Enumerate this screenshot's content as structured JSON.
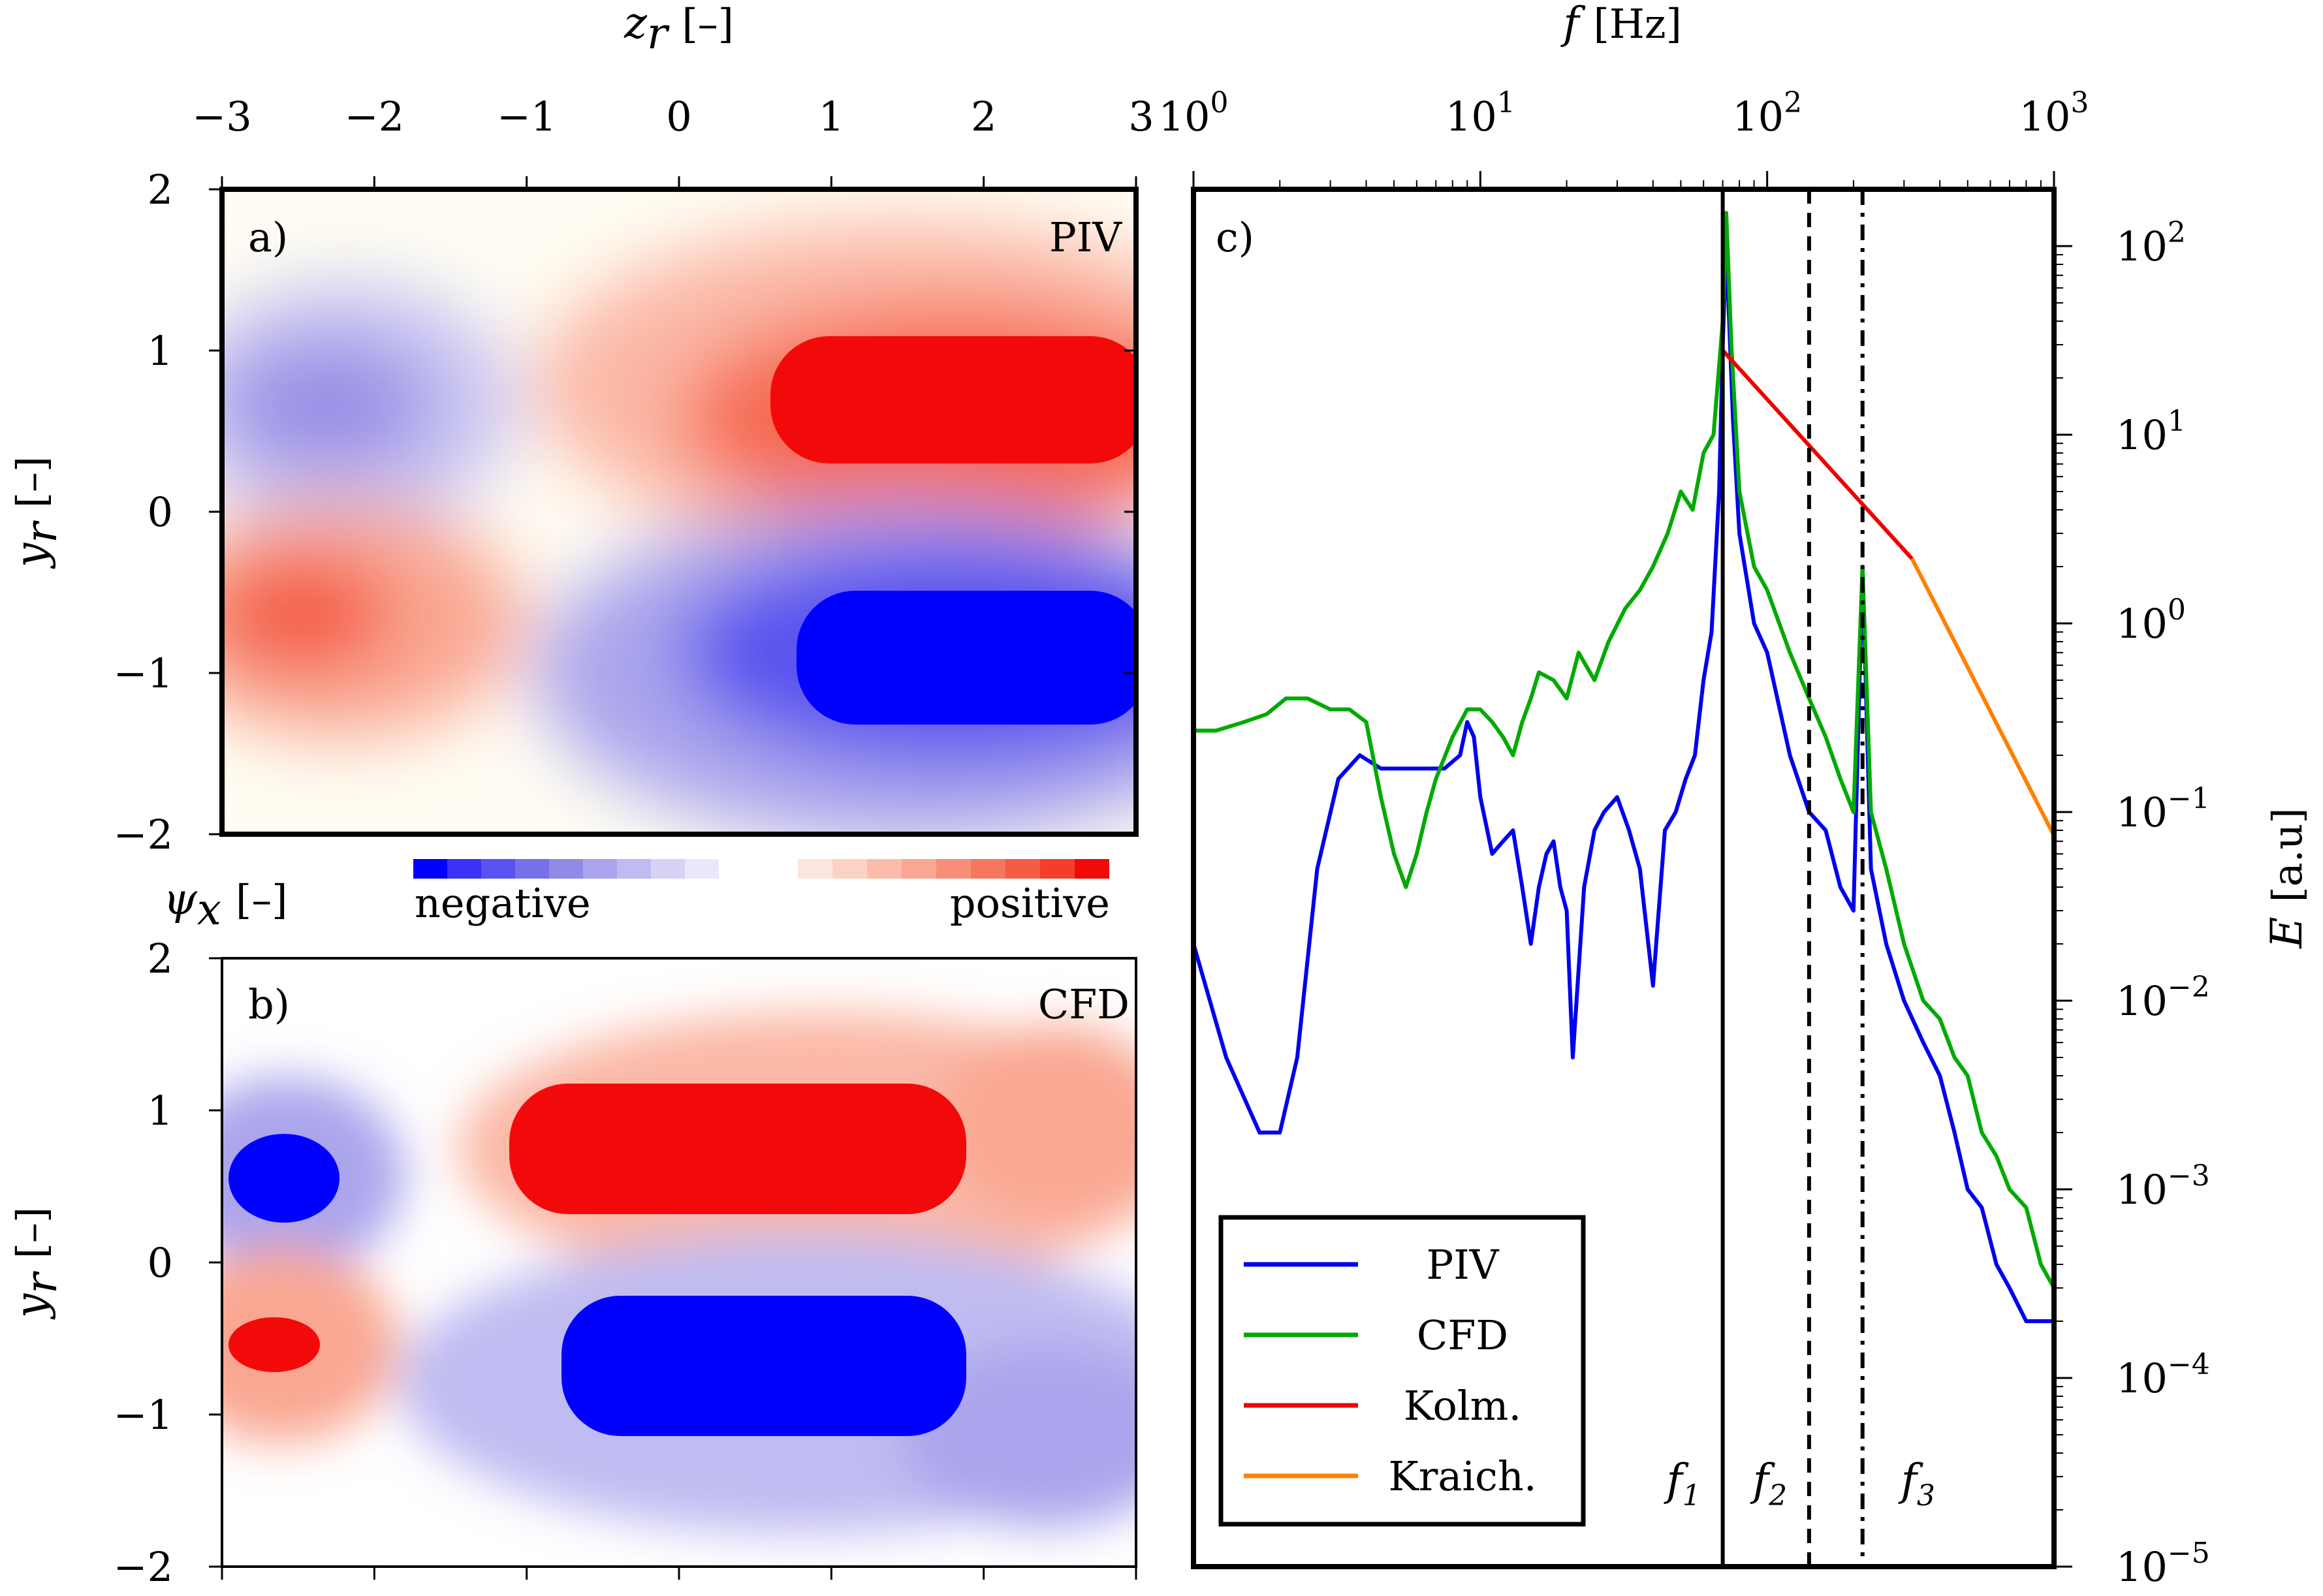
{
  "chart_data": [
    {
      "type": "heatmap",
      "panel_label": "a)",
      "source_label": "PIV",
      "xlabel_symbol": "z",
      "xlabel_sub": "r",
      "xlabel_unit": "[–]",
      "ylabel_symbol": "y",
      "ylabel_sub": "r",
      "ylabel_unit": "[–]",
      "xlim": [
        -3,
        3
      ],
      "ylim": [
        -2,
        2
      ],
      "xticks": [
        "−3",
        "−2",
        "−1",
        "0",
        "1",
        "2",
        "3"
      ],
      "yticks": [
        "2",
        "1",
        "0",
        "−1",
        "−2"
      ],
      "lobes": [
        {
          "sign": "negative",
          "z": -2.5,
          "y": 0.65,
          "magnitude": 0.55
        },
        {
          "sign": "positive",
          "z": 1.9,
          "y": 0.65,
          "magnitude": 1.0
        },
        {
          "sign": "positive",
          "z": -2.5,
          "y": -0.65,
          "magnitude": 0.65
        },
        {
          "sign": "negative",
          "z": 1.9,
          "y": -0.95,
          "magnitude": 1.0
        }
      ]
    },
    {
      "type": "heatmap",
      "panel_label": "b)",
      "source_label": "CFD",
      "ylabel_symbol": "y",
      "ylabel_sub": "r",
      "ylabel_unit": "[–]",
      "xlim": [
        -3,
        3
      ],
      "ylim": [
        -2,
        2
      ],
      "yticks": [
        "2",
        "1",
        "0",
        "−1",
        "−2"
      ],
      "lobes": [
        {
          "sign": "negative",
          "z": -2.7,
          "y": 0.6,
          "magnitude": 0.9
        },
        {
          "sign": "positive",
          "z": 1.2,
          "y": 0.75,
          "magnitude": 1.0
        },
        {
          "sign": "positive",
          "z": -2.7,
          "y": -0.55,
          "magnitude": 0.9
        },
        {
          "sign": "negative",
          "z": 0.9,
          "y": -0.75,
          "magnitude": 1.0
        }
      ]
    },
    {
      "type": "line",
      "panel_label": "c)",
      "xlabel_symbol": "f",
      "xlabel_unit": "[Hz]",
      "ylabel_symbol": "E",
      "ylabel_unit": "[a.u]",
      "x_scale": "log",
      "y_scale": "log",
      "xlim": [
        1,
        1000
      ],
      "ylim": [
        1e-05,
        200
      ],
      "xticks": [
        {
          "base": "10",
          "exp": "0",
          "value": 1
        },
        {
          "base": "10",
          "exp": "1",
          "value": 10
        },
        {
          "base": "10",
          "exp": "2",
          "value": 100
        },
        {
          "base": "10",
          "exp": "3",
          "value": 1000
        }
      ],
      "yticks": [
        {
          "base": "10",
          "exp": "2",
          "value": 100
        },
        {
          "base": "10",
          "exp": "1",
          "value": 10
        },
        {
          "base": "10",
          "exp": "0",
          "value": 1
        },
        {
          "base": "10",
          "exp": "−1",
          "value": 0.1
        },
        {
          "base": "10",
          "exp": "−2",
          "value": 0.01
        },
        {
          "base": "10",
          "exp": "−3",
          "value": 0.001
        },
        {
          "base": "10",
          "exp": "−4",
          "value": 0.0001
        },
        {
          "base": "10",
          "exp": "−5",
          "value": 1e-05
        }
      ],
      "legend_position": "bottom-left",
      "series": [
        {
          "name": "PIV",
          "color": "#0000ee",
          "x": [
            1,
            1.3,
            1.7,
            2.0,
            2.3,
            2.7,
            3.2,
            3.8,
            4.5,
            5.5,
            6.5,
            7.5,
            8.5,
            9.0,
            9.5,
            10,
            11,
            12,
            13,
            14,
            15,
            16,
            17,
            18,
            19,
            20,
            21,
            23,
            25,
            27,
            30,
            33,
            36,
            40,
            44,
            48,
            52,
            56,
            60,
            64,
            68,
            70,
            72,
            76,
            80,
            90,
            100,
            120,
            140,
            160,
            180,
            200,
            215,
            230,
            260,
            300,
            350,
            400,
            450,
            500,
            560,
            630,
            700,
            800,
            900,
            1000
          ],
          "y": [
            0.02,
            0.005,
            0.002,
            0.002,
            0.005,
            0.05,
            0.15,
            0.2,
            0.17,
            0.17,
            0.17,
            0.17,
            0.2,
            0.3,
            0.25,
            0.12,
            0.06,
            0.07,
            0.08,
            0.04,
            0.02,
            0.04,
            0.06,
            0.07,
            0.04,
            0.03,
            0.005,
            0.04,
            0.08,
            0.1,
            0.12,
            0.08,
            0.05,
            0.012,
            0.08,
            0.1,
            0.15,
            0.2,
            0.5,
            0.9,
            5,
            30,
            100,
            12,
            3,
            1,
            0.7,
            0.2,
            0.1,
            0.08,
            0.04,
            0.03,
            2,
            0.05,
            0.02,
            0.01,
            0.006,
            0.004,
            0.002,
            0.001,
            0.0008,
            0.0004,
            0.0003,
            0.0002,
            0.0002,
            0.0002
          ]
        },
        {
          "name": "CFD",
          "color": "#00aa00",
          "x": [
            1,
            1.2,
            1.5,
            1.8,
            2.1,
            2.5,
            3.0,
            3.5,
            4.0,
            4.5,
            5.0,
            5.5,
            6.0,
            6.5,
            7.0,
            8.0,
            9.0,
            10,
            11,
            12,
            13,
            14,
            15,
            16,
            18,
            20,
            22,
            25,
            28,
            32,
            36,
            40,
            45,
            50,
            55,
            60,
            65,
            70,
            72,
            75,
            80,
            90,
            100,
            120,
            140,
            160,
            180,
            200,
            215,
            230,
            260,
            300,
            350,
            400,
            450,
            500,
            560,
            630,
            700,
            800,
            900,
            1000
          ],
          "y": [
            0.27,
            0.27,
            0.3,
            0.33,
            0.4,
            0.4,
            0.35,
            0.35,
            0.3,
            0.12,
            0.06,
            0.04,
            0.06,
            0.1,
            0.15,
            0.25,
            0.35,
            0.35,
            0.3,
            0.25,
            0.2,
            0.3,
            0.4,
            0.55,
            0.5,
            0.4,
            0.7,
            0.5,
            0.8,
            1.2,
            1.5,
            2,
            3,
            5,
            4,
            8,
            10,
            40,
            150,
            30,
            5,
            2,
            1.5,
            0.7,
            0.4,
            0.25,
            0.15,
            0.1,
            2,
            0.1,
            0.05,
            0.02,
            0.01,
            0.008,
            0.005,
            0.004,
            0.002,
            0.0015,
            0.001,
            0.0008,
            0.0004,
            0.0003
          ]
        },
        {
          "name": "Kolm.",
          "color": "#ee0000",
          "x": [
            70,
            320
          ],
          "y": [
            28,
            2.2
          ]
        },
        {
          "name": "Kraich.",
          "color": "#ff8000",
          "x": [
            320,
            1000
          ],
          "y": [
            2.2,
            0.075
          ]
        }
      ],
      "vlines": [
        {
          "label_base": "f",
          "label_sub": "1",
          "x": 70,
          "style": "solid"
        },
        {
          "label_base": "f",
          "label_sub": "2",
          "x": 140,
          "style": "dashed"
        },
        {
          "label_base": "f",
          "label_sub": "3",
          "x": 215,
          "style": "dashdot"
        }
      ]
    }
  ],
  "colorbar": {
    "label_symbol": "ψ",
    "label_sub": "x",
    "label_unit": "[–]",
    "negative_label": "negative",
    "positive_label": "positive",
    "negative_colors": [
      "#0000ff",
      "#3a33f5",
      "#5a52ee",
      "#7870e8",
      "#918be6",
      "#aaa5ec",
      "#c0bcf1",
      "#d6d3f6",
      "#e9e7fb"
    ],
    "positive_colors": [
      "#fde6de",
      "#fcd2c5",
      "#fbbdab",
      "#f9a792",
      "#f78f78",
      "#f6775f",
      "#f45c44",
      "#f33f2a",
      "#f20a0a"
    ]
  },
  "colors": {
    "background_field": "#fffdf3"
  }
}
